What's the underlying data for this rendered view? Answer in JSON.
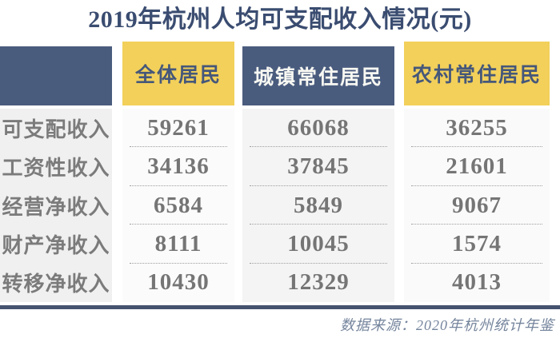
{
  "chart_data": {
    "type": "table",
    "title": "2019年杭州人均可支配收入情况(元)",
    "columns": [
      "",
      "全体居民",
      "城镇常住居民",
      "农村常住居民"
    ],
    "rows": [
      [
        "可支配收入",
        "59261",
        "66068",
        "36255"
      ],
      [
        "工资性收入",
        "34136",
        "37845",
        "21601"
      ],
      [
        "经营净收入",
        "6584",
        "5849",
        "9067"
      ],
      [
        "财产净收入",
        "8111",
        "10045",
        "1574"
      ],
      [
        "转移净收入",
        "10430",
        "12329",
        "4013"
      ]
    ],
    "source": "数据来源：2020年杭州统计年鉴",
    "layout": {
      "unit": "元",
      "header_style": "alternating blue/yellow",
      "grid": "dotted row separators"
    }
  },
  "colors": {
    "title_blue": "#3a4c70",
    "header_blue": "#4a5c7e",
    "header_yellow": "#f2d05a",
    "header_yellow_text": "#45577a",
    "body_text_gray": "#757575",
    "bottom_rule": "#45536e",
    "source_text": "#75859d"
  }
}
